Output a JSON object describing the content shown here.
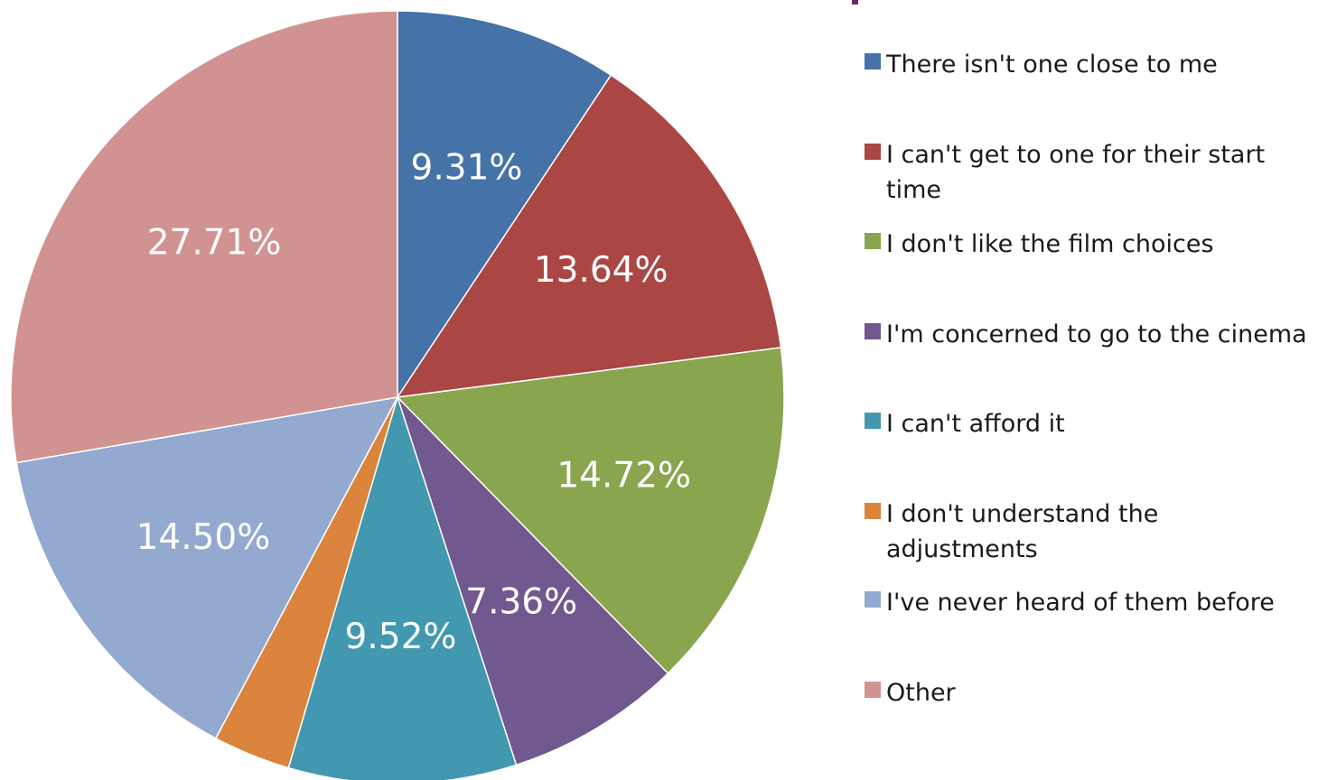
{
  "chart_data": {
    "type": "pie",
    "title": "",
    "legend_position": "right",
    "categories": [
      "There isn't one close to me",
      "I can't get to one for their start time",
      "I don't like the film choices",
      "I'm concerned to go to the cinema",
      "I can't afford it",
      "I don't understand the adjustments",
      "I've never heard of them before",
      "Other"
    ],
    "values": [
      9.31,
      13.64,
      14.72,
      7.36,
      9.52,
      3.24,
      14.5,
      27.71
    ],
    "data_labels": [
      "9.31%",
      "13.64%",
      "14.72%",
      "7.36%",
      "9.52%",
      "",
      "14.50%",
      "27.71%"
    ],
    "colors": [
      "#4572a7",
      "#aa4643",
      "#89a54e",
      "#71588f",
      "#4198af",
      "#db843d",
      "#93a9cf",
      "#d19392"
    ]
  }
}
